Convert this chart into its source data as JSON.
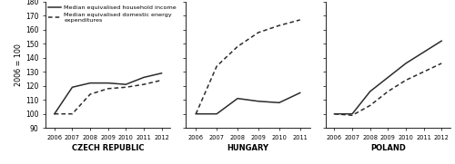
{
  "years_cz": [
    2006,
    2007,
    2008,
    2009,
    2010,
    2011,
    2012
  ],
  "years_hu": [
    2006,
    2007,
    2008,
    2009,
    2010,
    2011
  ],
  "years_pl": [
    2006,
    2007,
    2008,
    2009,
    2010,
    2011,
    2012
  ],
  "cz_income": [
    100,
    119,
    122,
    122,
    121,
    126,
    129
  ],
  "cz_energy": [
    100,
    100,
    114,
    118,
    119,
    121,
    124
  ],
  "hu_income": [
    100,
    100,
    111,
    109,
    108,
    115
  ],
  "hu_energy": [
    100,
    134,
    148,
    158,
    163,
    167
  ],
  "pl_income": [
    100,
    100,
    116,
    126,
    136,
    144,
    152
  ],
  "pl_energy": [
    100,
    99,
    106,
    116,
    124,
    130,
    136
  ],
  "ylim": [
    90,
    180
  ],
  "yticks": [
    90,
    100,
    110,
    120,
    130,
    140,
    150,
    160,
    170,
    180
  ],
  "ylabel": "2006 = 100",
  "countries": [
    "CZECH REPUBLIC",
    "HUNGARY",
    "POLAND"
  ],
  "legend_income": "Median equivalised household income",
  "legend_energy": "Median equivalised domestic energy\nexpenditures",
  "line_color": "#2b2b2b"
}
